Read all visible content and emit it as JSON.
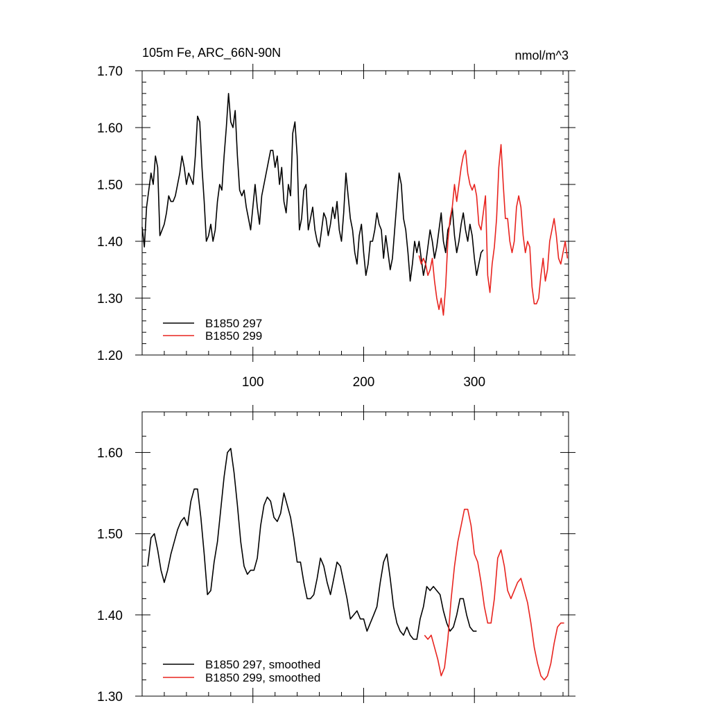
{
  "chart_data": [
    {
      "type": "line",
      "title": "105m Fe, ARC_66N-90N",
      "units": "nmol/m^3",
      "xlim": [
        0,
        385
      ],
      "ylim": [
        1.2,
        1.7
      ],
      "xticks": [
        100,
        200,
        300
      ],
      "xtick_labels": [
        "100",
        "200",
        "300"
      ],
      "yticks": [
        1.2,
        1.3,
        1.4,
        1.5,
        1.6,
        1.7
      ],
      "ytick_labels": [
        "1.20",
        "1.30",
        "1.40",
        "1.50",
        "1.60",
        "1.70"
      ],
      "legend_position": "bottom-left",
      "series": [
        {
          "name": "B1850 297",
          "color": "#000000",
          "x": [
            0,
            2,
            4,
            6,
            8,
            10,
            12,
            14,
            16,
            18,
            20,
            22,
            24,
            26,
            28,
            30,
            32,
            34,
            36,
            38,
            40,
            42,
            44,
            46,
            48,
            50,
            52,
            54,
            56,
            58,
            60,
            62,
            64,
            66,
            68,
            70,
            72,
            74,
            76,
            78,
            80,
            82,
            84,
            86,
            88,
            90,
            92,
            94,
            96,
            98,
            100,
            102,
            104,
            106,
            108,
            110,
            112,
            114,
            116,
            118,
            120,
            122,
            124,
            126,
            128,
            130,
            132,
            134,
            136,
            138,
            140,
            142,
            144,
            146,
            148,
            150,
            152,
            154,
            156,
            158,
            160,
            162,
            164,
            166,
            168,
            170,
            172,
            174,
            176,
            178,
            180,
            182,
            184,
            186,
            188,
            190,
            192,
            194,
            196,
            198,
            200,
            202,
            204,
            206,
            208,
            210,
            212,
            214,
            216,
            218,
            220,
            222,
            224,
            226,
            228,
            230,
            232,
            234,
            236,
            238,
            240,
            242,
            244,
            246,
            248,
            250,
            252,
            254,
            256,
            258,
            260,
            262,
            264,
            266,
            268,
            270,
            272,
            274,
            276,
            278,
            280,
            282,
            284,
            286,
            288,
            290,
            292,
            294,
            296,
            298,
            300,
            302,
            304,
            306,
            308
          ],
          "y": [
            1.425,
            1.39,
            1.46,
            1.49,
            1.52,
            1.5,
            1.55,
            1.53,
            1.41,
            1.42,
            1.43,
            1.45,
            1.48,
            1.47,
            1.47,
            1.48,
            1.5,
            1.52,
            1.55,
            1.53,
            1.5,
            1.52,
            1.51,
            1.5,
            1.55,
            1.62,
            1.61,
            1.53,
            1.47,
            1.4,
            1.41,
            1.43,
            1.4,
            1.42,
            1.47,
            1.5,
            1.49,
            1.55,
            1.6,
            1.66,
            1.61,
            1.6,
            1.63,
            1.55,
            1.49,
            1.48,
            1.49,
            1.46,
            1.44,
            1.42,
            1.46,
            1.5,
            1.46,
            1.43,
            1.48,
            1.5,
            1.52,
            1.54,
            1.56,
            1.56,
            1.53,
            1.55,
            1.5,
            1.53,
            1.47,
            1.45,
            1.5,
            1.48,
            1.59,
            1.61,
            1.55,
            1.42,
            1.44,
            1.49,
            1.5,
            1.42,
            1.44,
            1.46,
            1.42,
            1.4,
            1.39,
            1.42,
            1.45,
            1.44,
            1.41,
            1.43,
            1.46,
            1.44,
            1.47,
            1.42,
            1.4,
            1.45,
            1.52,
            1.48,
            1.44,
            1.42,
            1.38,
            1.36,
            1.41,
            1.43,
            1.38,
            1.34,
            1.36,
            1.4,
            1.4,
            1.42,
            1.45,
            1.43,
            1.42,
            1.37,
            1.41,
            1.38,
            1.35,
            1.37,
            1.42,
            1.47,
            1.52,
            1.5,
            1.44,
            1.42,
            1.38,
            1.33,
            1.36,
            1.4,
            1.38,
            1.4,
            1.37,
            1.34,
            1.36,
            1.39,
            1.42,
            1.4,
            1.37,
            1.39,
            1.42,
            1.45,
            1.4,
            1.38,
            1.42,
            1.43,
            1.46,
            1.41,
            1.38,
            1.4,
            1.43,
            1.45,
            1.42,
            1.4,
            1.43,
            1.41,
            1.37,
            1.34,
            1.36,
            1.38,
            1.385
          ]
        },
        {
          "name": "B1850 299",
          "color": "#e8231e",
          "x": [
            250,
            252,
            254,
            256,
            258,
            260,
            262,
            264,
            266,
            268,
            270,
            272,
            274,
            276,
            278,
            280,
            282,
            284,
            286,
            288,
            290,
            292,
            294,
            296,
            298,
            300,
            302,
            304,
            306,
            308,
            310,
            312,
            314,
            316,
            318,
            320,
            322,
            324,
            326,
            328,
            330,
            332,
            334,
            336,
            338,
            340,
            342,
            344,
            346,
            348,
            350,
            352,
            354,
            356,
            358,
            360,
            362,
            364,
            366,
            368,
            370,
            372,
            374,
            376,
            378,
            380,
            382,
            384
          ],
          "y": [
            1.375,
            1.36,
            1.37,
            1.36,
            1.34,
            1.35,
            1.37,
            1.33,
            1.3,
            1.28,
            1.3,
            1.27,
            1.32,
            1.4,
            1.44,
            1.46,
            1.5,
            1.47,
            1.5,
            1.53,
            1.55,
            1.56,
            1.52,
            1.5,
            1.49,
            1.5,
            1.48,
            1.43,
            1.42,
            1.45,
            1.48,
            1.34,
            1.31,
            1.36,
            1.39,
            1.44,
            1.53,
            1.57,
            1.5,
            1.44,
            1.44,
            1.4,
            1.38,
            1.4,
            1.46,
            1.48,
            1.46,
            1.41,
            1.38,
            1.4,
            1.39,
            1.32,
            1.29,
            1.29,
            1.3,
            1.34,
            1.37,
            1.33,
            1.35,
            1.4,
            1.42,
            1.44,
            1.41,
            1.37,
            1.36,
            1.38,
            1.4,
            1.37
          ]
        }
      ]
    },
    {
      "type": "line",
      "title": "",
      "xlim": [
        0,
        385
      ],
      "ylim": [
        1.3,
        1.65
      ],
      "xticks": [
        100,
        200,
        300
      ],
      "yticks": [
        1.3,
        1.4,
        1.5,
        1.6
      ],
      "ytick_labels": [
        "1.30",
        "1.40",
        "1.50",
        "1.60"
      ],
      "legend_position": "bottom-left",
      "series": [
        {
          "name": "B1850 297, smoothed",
          "color": "#000000",
          "x": [
            5,
            8,
            11,
            14,
            17,
            20,
            23,
            26,
            29,
            32,
            35,
            38,
            41,
            44,
            47,
            50,
            53,
            56,
            59,
            62,
            65,
            68,
            71,
            74,
            77,
            80,
            83,
            86,
            89,
            92,
            95,
            98,
            101,
            104,
            107,
            110,
            113,
            116,
            119,
            122,
            125,
            128,
            131,
            134,
            137,
            140,
            143,
            146,
            149,
            152,
            155,
            158,
            161,
            164,
            167,
            170,
            173,
            176,
            179,
            182,
            185,
            188,
            191,
            194,
            197,
            200,
            203,
            206,
            209,
            212,
            215,
            218,
            221,
            224,
            227,
            230,
            233,
            236,
            239,
            242,
            245,
            248,
            251,
            254,
            257,
            260,
            263,
            266,
            269,
            272,
            275,
            278,
            281,
            284,
            287,
            290,
            293,
            296,
            299,
            302
          ],
          "y": [
            1.46,
            1.495,
            1.5,
            1.48,
            1.455,
            1.44,
            1.455,
            1.475,
            1.49,
            1.505,
            1.515,
            1.52,
            1.51,
            1.54,
            1.555,
            1.555,
            1.52,
            1.475,
            1.425,
            1.43,
            1.465,
            1.49,
            1.53,
            1.57,
            1.6,
            1.605,
            1.575,
            1.535,
            1.49,
            1.46,
            1.45,
            1.455,
            1.455,
            1.47,
            1.51,
            1.535,
            1.545,
            1.54,
            1.52,
            1.515,
            1.525,
            1.55,
            1.535,
            1.52,
            1.495,
            1.465,
            1.465,
            1.44,
            1.42,
            1.42,
            1.425,
            1.445,
            1.47,
            1.46,
            1.44,
            1.425,
            1.445,
            1.465,
            1.46,
            1.44,
            1.42,
            1.395,
            1.4,
            1.405,
            1.395,
            1.395,
            1.38,
            1.39,
            1.4,
            1.41,
            1.44,
            1.465,
            1.475,
            1.445,
            1.41,
            1.39,
            1.38,
            1.375,
            1.385,
            1.375,
            1.37,
            1.37,
            1.395,
            1.41,
            1.435,
            1.43,
            1.435,
            1.43,
            1.425,
            1.405,
            1.39,
            1.38,
            1.385,
            1.4,
            1.42,
            1.42,
            1.4,
            1.385,
            1.38,
            1.38
          ]
        },
        {
          "name": "B1850 299, smoothed",
          "color": "#e8231e",
          "x": [
            255,
            258,
            261,
            264,
            267,
            270,
            273,
            276,
            279,
            282,
            285,
            288,
            291,
            294,
            297,
            300,
            303,
            306,
            309,
            312,
            315,
            318,
            321,
            324,
            327,
            330,
            333,
            336,
            339,
            342,
            345,
            348,
            351,
            354,
            357,
            360,
            363,
            366,
            369,
            372,
            375,
            378,
            381
          ],
          "y": [
            1.375,
            1.37,
            1.375,
            1.36,
            1.345,
            1.325,
            1.335,
            1.37,
            1.42,
            1.46,
            1.49,
            1.51,
            1.53,
            1.53,
            1.51,
            1.475,
            1.465,
            1.44,
            1.41,
            1.39,
            1.39,
            1.42,
            1.47,
            1.48,
            1.46,
            1.43,
            1.42,
            1.43,
            1.44,
            1.445,
            1.43,
            1.415,
            1.39,
            1.36,
            1.34,
            1.325,
            1.32,
            1.325,
            1.34,
            1.365,
            1.385,
            1.39,
            1.39
          ]
        }
      ]
    }
  ]
}
